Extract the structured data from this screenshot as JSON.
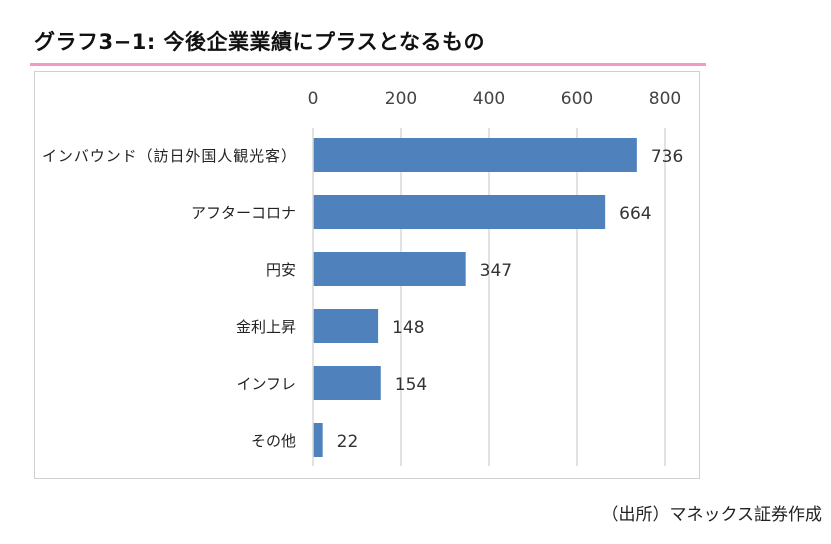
{
  "title": "グラフ3−1: 今後企業業績にプラスとなるもの",
  "source": "（出所）マネックス証券作成",
  "colors": {
    "bar": "#4f81bd",
    "accent_rule": "#f29ac6",
    "grid": "#d9d9d9"
  },
  "chart_data": {
    "type": "bar",
    "orientation": "horizontal",
    "title": "グラフ3−1: 今後企業業績にプラスとなるもの",
    "categories": [
      "インバウンド（訪日外国人観光客）",
      "アフターコロナ",
      "円安",
      "金利上昇",
      "インフレ",
      "その他"
    ],
    "values": [
      736,
      664,
      347,
      148,
      154,
      22
    ],
    "xlim": [
      0,
      800
    ],
    "xticks": [
      0,
      200,
      400,
      600,
      800
    ],
    "xlabel": "",
    "ylabel": "",
    "grid": true,
    "axis_position": "top",
    "data_labels": true
  }
}
